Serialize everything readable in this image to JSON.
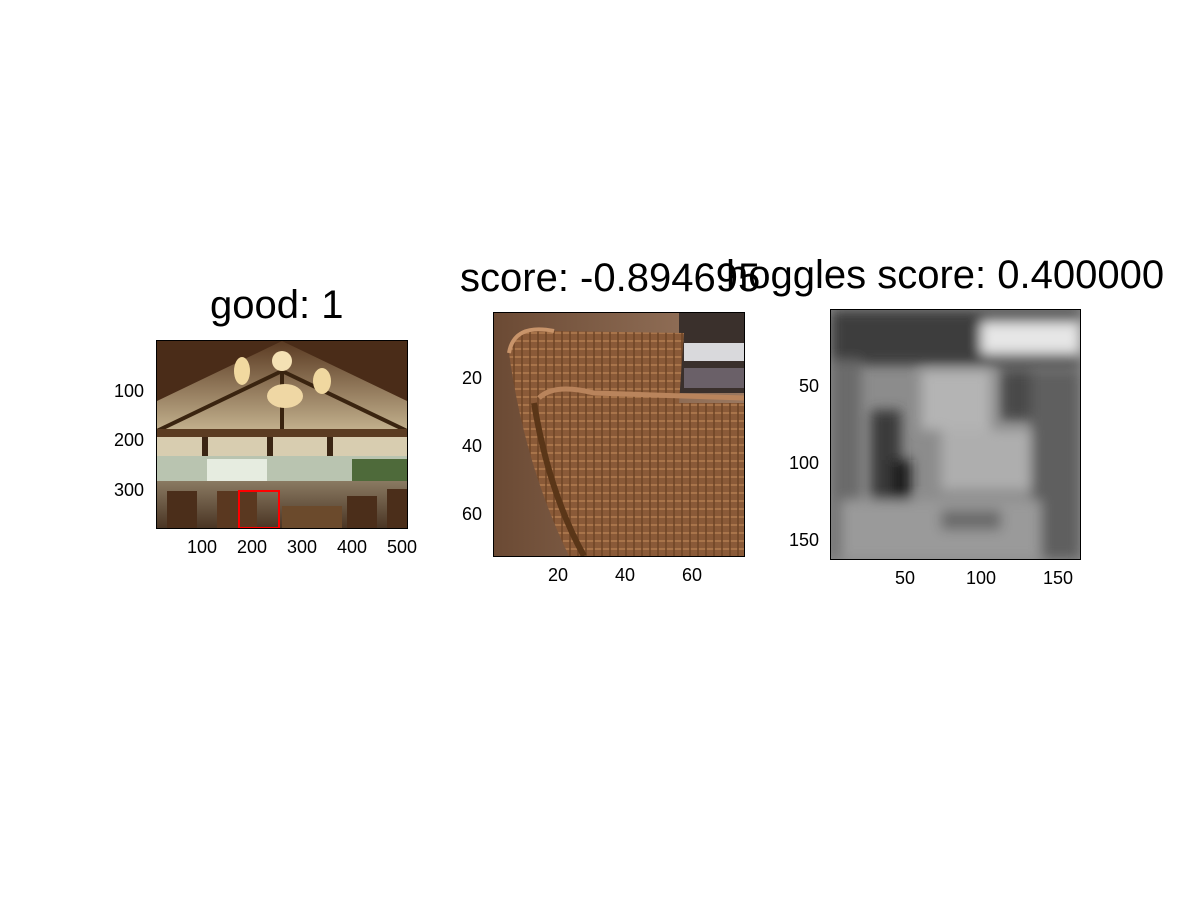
{
  "chart_data": [
    {
      "type": "image",
      "title": "good: 1",
      "xlim": [
        0,
        500
      ],
      "ylim": [
        0,
        375
      ],
      "xticks": [
        "100",
        "200",
        "300",
        "400",
        "500"
      ],
      "yticks": [
        "100",
        "200",
        "300"
      ],
      "content": "restaurant interior photo with a red detection box",
      "box": {
        "x1": 165,
        "y1": 300,
        "x2": 245,
        "y2": 375,
        "color": "#ff0000"
      }
    },
    {
      "type": "image",
      "title": "score: -0.894695",
      "xlim": [
        0,
        75
      ],
      "ylim": [
        0,
        75
      ],
      "xticks": [
        "20",
        "40",
        "60"
      ],
      "yticks": [
        "20",
        "40",
        "60"
      ],
      "content": "zoomed crop of a wicker chair"
    },
    {
      "type": "heatmap",
      "title": "hoggles score: 0.400000",
      "colormap": "gray",
      "xlim": [
        0,
        160
      ],
      "ylim": [
        0,
        160
      ],
      "xticks": [
        "50",
        "100",
        "150"
      ],
      "yticks": [
        "50",
        "100",
        "150"
      ]
    }
  ]
}
